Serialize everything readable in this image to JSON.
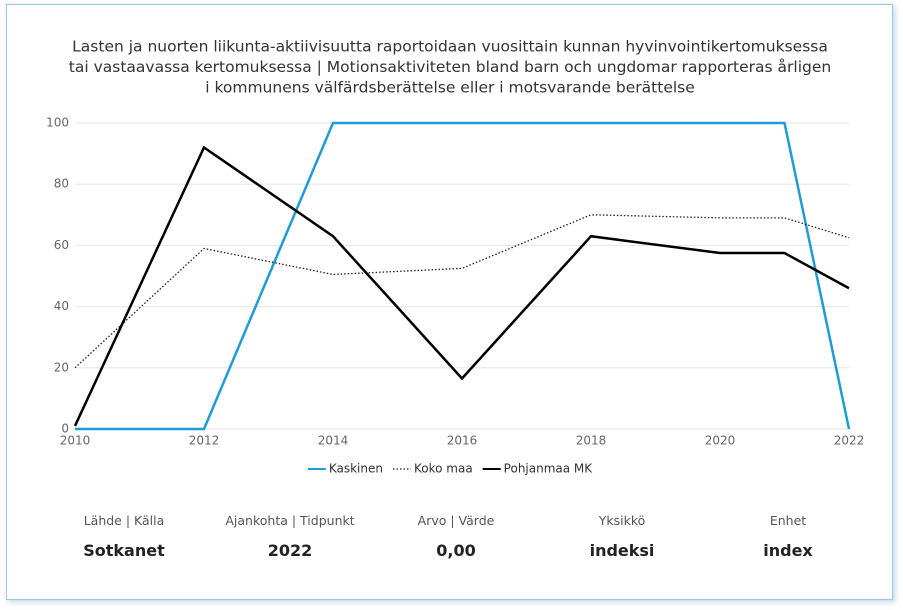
{
  "chart_data": {
    "type": "line",
    "title": [
      "Lasten ja nuorten liikunta-aktiivisuutta raportoidaan vuosittain kunnan hyvinvointikertomuksessa",
      "tai vastaavassa kertomuksessa | Motionsaktiviteten bland barn och ungdomar rapporteras årligen",
      "i kommunens välfärdsberättelse eller i motsvarande berättelse"
    ],
    "x": [
      2010,
      2012,
      2014,
      2016,
      2018,
      2020,
      2021,
      2022
    ],
    "series": [
      {
        "name": "Kaskinen",
        "color": "#1f9bd7",
        "dash": "solid",
        "values": [
          0,
          0,
          100,
          100,
          100,
          100,
          100,
          0
        ]
      },
      {
        "name": "Koko maa",
        "color": "#222222",
        "dash": "dotted",
        "values": [
          20,
          59,
          50.5,
          52.5,
          70,
          69,
          69,
          62.5
        ]
      },
      {
        "name": "Pohjanmaa MK",
        "color": "#000000",
        "dash": "solid",
        "values": [
          1,
          92,
          63,
          16.5,
          63,
          57.5,
          57.5,
          46
        ]
      }
    ],
    "xlim": [
      2010,
      2022
    ],
    "xticks": [
      2010,
      2012,
      2014,
      2016,
      2018,
      2020,
      2022
    ],
    "ylim": [
      0,
      100
    ],
    "yticks": [
      0,
      20,
      40,
      60,
      80,
      100
    ],
    "grid": true,
    "legend": "bottom"
  },
  "footer": [
    {
      "label": "Lähde | Källa",
      "value": "Sotkanet"
    },
    {
      "label": "Ajankohta | Tidpunkt",
      "value": "2022"
    },
    {
      "label": "Arvo | Värde",
      "value": "0,00"
    },
    {
      "label": "Yksikkö",
      "value": "indeksi"
    },
    {
      "label": "Enhet",
      "value": "index"
    }
  ]
}
